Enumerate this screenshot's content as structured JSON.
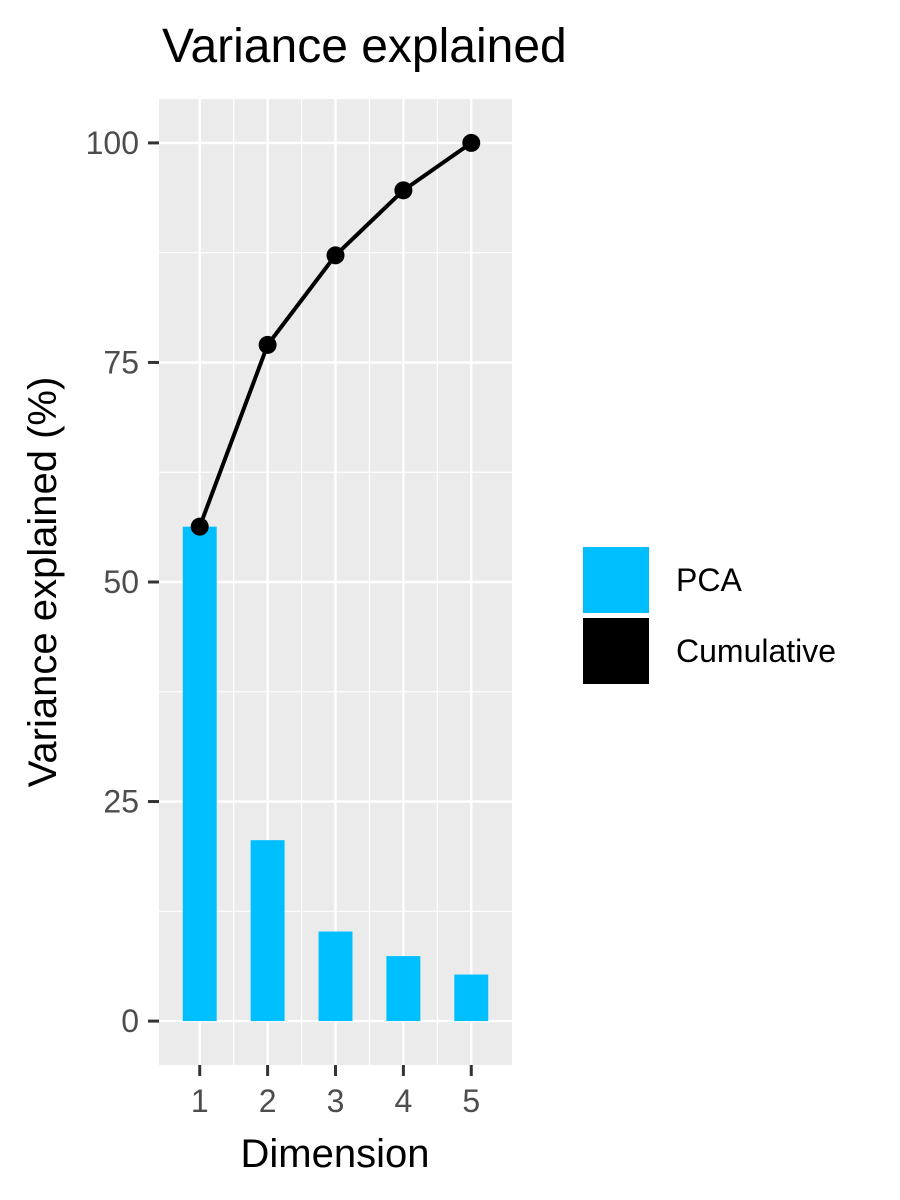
{
  "chart_data": {
    "type": "bar",
    "title": "Variance explained",
    "xlabel": "Dimension",
    "ylabel": "Variance explained (%)",
    "categories": [
      "1",
      "2",
      "3",
      "4",
      "5"
    ],
    "ylim": [
      -5,
      105
    ],
    "yticks": [
      0,
      25,
      50,
      75,
      100
    ],
    "ytick_labels": [
      "0",
      "25",
      "50",
      "75",
      "100"
    ],
    "grid": true,
    "legend_position": "right",
    "series": [
      {
        "name": "PCA",
        "type": "bar",
        "color": "#00BFFF",
        "values": [
          56.3,
          20.6,
          10.2,
          7.4,
          5.3
        ]
      },
      {
        "name": "Cumulative",
        "type": "line",
        "color": "#000000",
        "values": [
          56.3,
          77.0,
          87.2,
          94.6,
          100.0
        ]
      }
    ]
  },
  "colors": {
    "panel_background": "#EBEBEB",
    "grid": "#FFFFFF",
    "tick_text": "#4D4D4D"
  }
}
